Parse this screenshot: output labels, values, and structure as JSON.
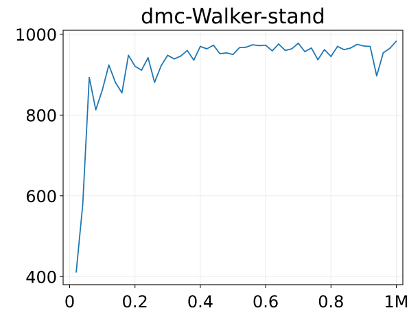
{
  "chart_data": {
    "type": "line",
    "title": "dmc-Walker-stand",
    "xlabel": "",
    "ylabel": "",
    "xlim": [
      -0.02,
      1.02
    ],
    "ylim": [
      380,
      1010
    ],
    "grid": true,
    "x_ticks": [
      0,
      0.2,
      0.4,
      0.6,
      0.8,
      1.0
    ],
    "x_tick_labels": [
      "0",
      "0.2",
      "0.4",
      "0.6",
      "0.8",
      "1M"
    ],
    "y_ticks": [
      400,
      600,
      800,
      1000
    ],
    "y_tick_labels": [
      "400",
      "600",
      "800",
      "1000"
    ],
    "series": [
      {
        "color": "#1f77b4",
        "x": [
          0.02,
          0.04,
          0.06,
          0.08,
          0.1,
          0.12,
          0.14,
          0.16,
          0.18,
          0.2,
          0.22,
          0.24,
          0.26,
          0.28,
          0.3,
          0.32,
          0.34,
          0.36,
          0.38,
          0.4,
          0.42,
          0.44,
          0.46,
          0.48,
          0.5,
          0.52,
          0.54,
          0.56,
          0.58,
          0.6,
          0.62,
          0.64,
          0.66,
          0.68,
          0.7,
          0.72,
          0.74,
          0.76,
          0.78,
          0.8,
          0.82,
          0.84,
          0.86,
          0.88,
          0.9,
          0.92,
          0.94,
          0.96,
          0.98,
          1.0
        ],
        "y": [
          411,
          578,
          893,
          813,
          862,
          924,
          881,
          855,
          948,
          921,
          911,
          942,
          881,
          922,
          948,
          939,
          946,
          960,
          936,
          970,
          964,
          973,
          952,
          954,
          950,
          967,
          968,
          974,
          972,
          973,
          959,
          976,
          960,
          964,
          978,
          957,
          966,
          937,
          962,
          945,
          970,
          962,
          966,
          975,
          971,
          970,
          897,
          954,
          965,
          983
        ]
      }
    ]
  }
}
